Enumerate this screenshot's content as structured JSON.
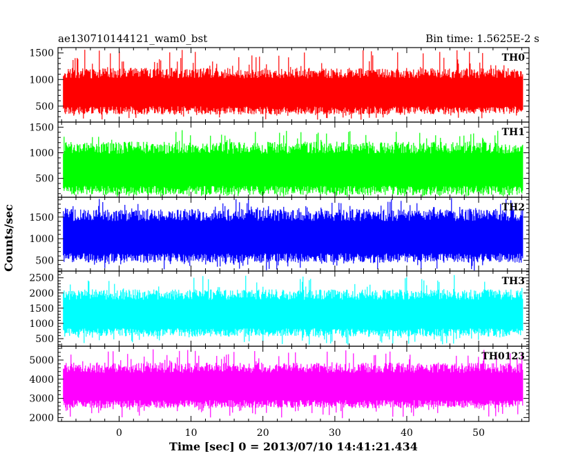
{
  "chart_data": {
    "type": "line",
    "title_left": "ae130710144121_wam0_bst",
    "title_right": "Bin time: 1.5625E-2 s",
    "xlabel": "Time [sec] 0 = 2013/07/10 14:41:21.434",
    "ylabel": "Counts/sec",
    "xlim": [
      -8.5,
      57
    ],
    "x_data_range": [
      -7.8,
      56.1
    ],
    "x_ticks": [
      0,
      10,
      20,
      30,
      40,
      50
    ],
    "x_minor_step": 2,
    "grid": false,
    "legend": "none",
    "panels": [
      {
        "name": "TH0",
        "color": "#ff0000",
        "ylim": [
          200,
          1600
        ],
        "y_ticks": [
          500,
          1000,
          1500
        ],
        "y_minor_step": 100,
        "band_low": 420,
        "band_high": 1120,
        "spike_low": 240,
        "spike_high": 1560
      },
      {
        "name": "TH1",
        "color": "#00ff00",
        "ylim": [
          130,
          1600
        ],
        "y_ticks": [
          500,
          1000,
          1500
        ],
        "y_minor_step": 100,
        "band_low": 260,
        "band_high": 1100,
        "spike_low": 140,
        "spike_high": 1450
      },
      {
        "name": "TH2",
        "color": "#0000ff",
        "ylim": [
          250,
          1960
        ],
        "y_ticks": [
          500,
          1000,
          1500
        ],
        "y_minor_step": 100,
        "band_low": 550,
        "band_high": 1550,
        "spike_low": 260,
        "spike_high": 1940
      },
      {
        "name": "TH3",
        "color": "#00ffff",
        "ylim": [
          250,
          2720
        ],
        "y_ticks": [
          500,
          1000,
          1500,
          2000,
          2500
        ],
        "y_minor_step": 100,
        "band_low": 700,
        "band_high": 1950,
        "spike_low": 300,
        "spike_high": 2600
      },
      {
        "name": "TH0123",
        "color": "#ff00ff",
        "ylim": [
          1800,
          5720
        ],
        "y_ticks": [
          2000,
          3000,
          4000,
          5000
        ],
        "y_minor_step": 200,
        "band_low": 2700,
        "band_high": 4600,
        "spike_low": 1950,
        "spike_high": 5560
      }
    ]
  }
}
